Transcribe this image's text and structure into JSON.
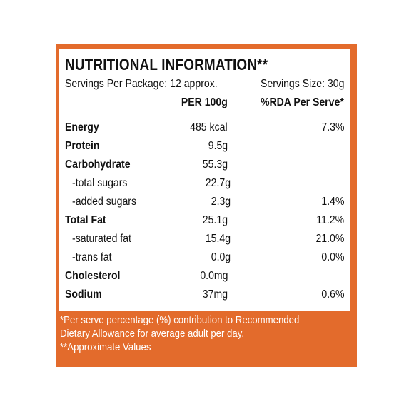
{
  "colors": {
    "panel": "#e36b2c",
    "card": "#ffffff",
    "text": "#111111"
  },
  "title": "NUTRITIONAL INFORMATION**",
  "servings_per_package": "Servings Per Package: 12 approx.",
  "serving_size": "Servings Size: 30g",
  "headers": {
    "per100": "PER 100g",
    "rda": "%RDA Per Serve*"
  },
  "rows": [
    {
      "label": "Energy",
      "per100": "485 kcal",
      "rda": "7.3%"
    },
    {
      "label": "Protein",
      "per100": "9.5g",
      "rda": ""
    },
    {
      "label": "Carbohydrate",
      "per100": "55.3g",
      "rda": ""
    },
    {
      "label": "-total sugars",
      "per100": "22.7g",
      "rda": ""
    },
    {
      "label": "-added sugars",
      "per100": "2.3g",
      "rda": "1.4%"
    },
    {
      "label": "Total Fat",
      "per100": "25.1g",
      "rda": "11.2%"
    },
    {
      "label": "-saturated fat",
      "per100": "15.4g",
      "rda": "21.0%"
    },
    {
      "label": "-trans fat",
      "per100": "0.0g",
      "rda": "0.0%"
    },
    {
      "label": "Cholesterol",
      "per100": "0.0mg",
      "rda": ""
    },
    {
      "label": "Sodium",
      "per100": "37mg",
      "rda": "0.6%"
    }
  ],
  "footnotes": [
    "*Per serve percentage (%) contribution to Recommended",
    "Dietary Allowance for average adult per day.",
    "**Approximate Values"
  ]
}
